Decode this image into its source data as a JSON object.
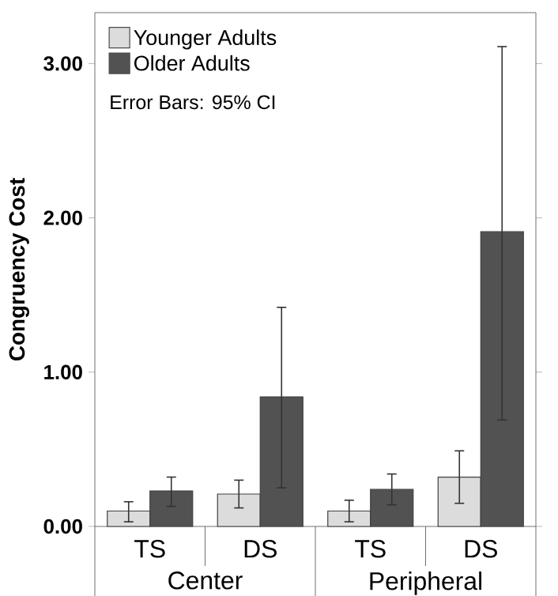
{
  "chart_data": {
    "type": "bar",
    "ylabel": "Congruency Cost",
    "categories": [
      "TS",
      "DS",
      "TS",
      "DS"
    ],
    "series": [
      {
        "name": "Younger Adults",
        "color": "#dcdcdc",
        "values": [
          0.1,
          0.21,
          0.1,
          0.32
        ],
        "errors": [
          [
            0.03,
            0.16
          ],
          [
            0.12,
            0.3
          ],
          [
            0.03,
            0.17
          ],
          [
            0.15,
            0.49
          ]
        ]
      },
      {
        "name": "Older Adults",
        "color": "#525252",
        "values": [
          0.23,
          0.84,
          0.24,
          1.91
        ],
        "errors": [
          [
            0.13,
            0.32
          ],
          [
            0.25,
            1.42
          ],
          [
            0.14,
            0.34
          ],
          [
            0.69,
            3.11
          ]
        ]
      }
    ],
    "ylim": [
      0,
      3.33
    ],
    "yticks": [
      {
        "value": 0,
        "label": "0.00"
      },
      {
        "value": 1,
        "label": "1.00"
      },
      {
        "value": 2,
        "label": "2.00"
      },
      {
        "value": 3,
        "label": "3.00"
      }
    ],
    "annotations": [
      "Error Bars: 95% CI",
      "Center",
      "Peripheral"
    ],
    "legend": "top left",
    "grid": false
  }
}
